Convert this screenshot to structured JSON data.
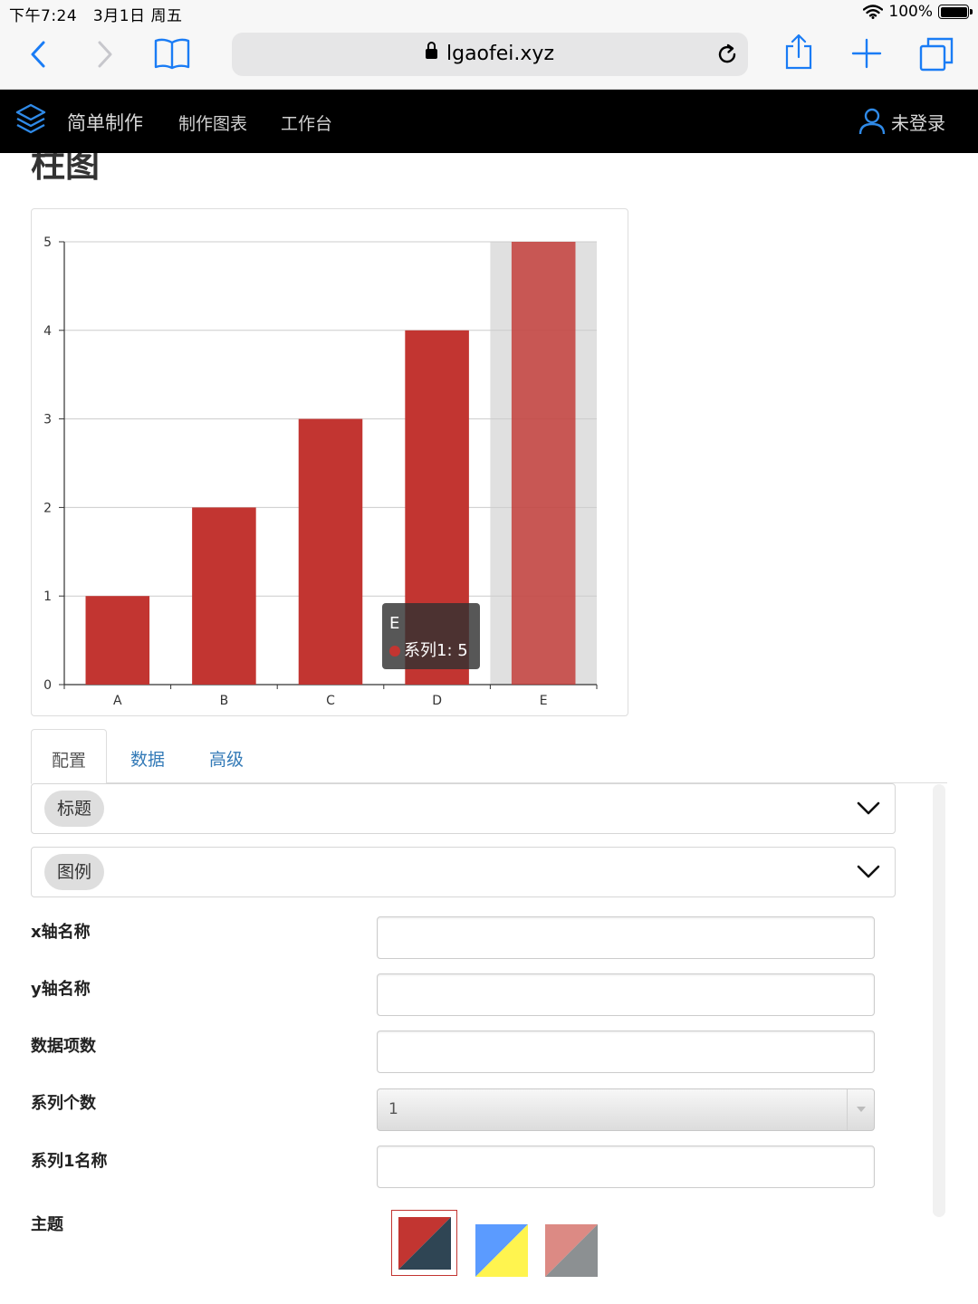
{
  "status_bar": {
    "time": "下午7:24",
    "date": "3月1日 周五",
    "battery": "100%"
  },
  "browser": {
    "url": "lgaofei.xyz"
  },
  "nav": {
    "brand": "简单制作",
    "links": [
      "制作图表",
      "工作台"
    ],
    "login": "未登录"
  },
  "page": {
    "heading": "柱图"
  },
  "chart_data": {
    "type": "bar",
    "categories": [
      "A",
      "B",
      "C",
      "D",
      "E"
    ],
    "values": [
      1,
      2,
      3,
      4,
      5
    ],
    "ylim": [
      0,
      5
    ],
    "series": [
      {
        "name": "系列1",
        "values": [
          1,
          2,
          3,
          4,
          5
        ]
      }
    ],
    "highlighted_category": "E",
    "color": "#c23531",
    "grid": true
  },
  "tooltip": {
    "category": "E",
    "text": "系列1: 5"
  },
  "tabs": [
    {
      "label": "配置",
      "active": true
    },
    {
      "label": "数据",
      "active": false
    },
    {
      "label": "高级",
      "active": false
    }
  ],
  "sections": [
    {
      "label": "标题"
    },
    {
      "label": "图例"
    }
  ],
  "fields": {
    "x_axis_name": {
      "label": "x轴名称",
      "value": ""
    },
    "y_axis_name": {
      "label": "y轴名称",
      "value": ""
    },
    "data_count": {
      "label": "数据项数",
      "value": ""
    },
    "series_count": {
      "label": "系列个数",
      "value": "1"
    },
    "series1_name": {
      "label": "系列1名称",
      "value": ""
    }
  },
  "theme": {
    "label": "主题",
    "options": [
      {
        "name": "red-dark",
        "colors": [
          "#c23531",
          "#2f4554"
        ],
        "selected": true
      },
      {
        "name": "blue-yellow",
        "colors": [
          "#5b9bff",
          "#fff44f"
        ],
        "selected": false
      },
      {
        "name": "salmon-gray",
        "colors": [
          "#dc8a84",
          "#8c9092"
        ],
        "selected": false
      }
    ]
  }
}
